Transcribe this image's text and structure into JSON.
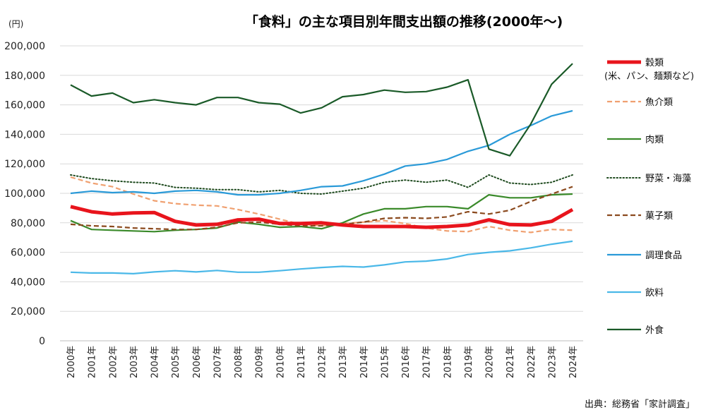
{
  "chart_data": {
    "type": "line",
    "title": "「食料」の主な項目別年間支出額の推移(2000年～)",
    "ylabel": "(円)",
    "xlabel": "",
    "ylim": [
      0,
      200000
    ],
    "yticks": [
      0,
      20000,
      40000,
      60000,
      80000,
      100000,
      120000,
      140000,
      160000,
      180000,
      200000
    ],
    "ytick_labels": [
      "0",
      "20,000",
      "40,000",
      "60,000",
      "80,000",
      "100,000",
      "120,000",
      "140,000",
      "160,000",
      "180,000",
      "200,000"
    ],
    "grid": true,
    "legend_placement": "right",
    "source": "出典：総務省「家計調査」",
    "categories": [
      "2000年",
      "2001年",
      "2002年",
      "2003年",
      "2004年",
      "2005年",
      "2006年",
      "2007年",
      "2008年",
      "2009年",
      "2010年",
      "2011年",
      "2012年",
      "2013年",
      "2014年",
      "2015年",
      "2016年",
      "2017年",
      "2018年",
      "2019年",
      "2020年",
      "2021年",
      "2022年",
      "2023年",
      "2024年"
    ],
    "series": [
      {
        "name": "穀類",
        "sub": "(米、パン、麺類など)",
        "color": "#e8141c",
        "style": "solid-thick",
        "values": [
          91000,
          87500,
          86000,
          86700,
          87000,
          81000,
          78500,
          79000,
          82000,
          82500,
          79500,
          79500,
          80000,
          78500,
          77500,
          77500,
          77500,
          77000,
          77500,
          78500,
          82000,
          78800,
          78500,
          81000,
          89000
        ]
      },
      {
        "name": "魚介類",
        "color": "#f0a070",
        "style": "dashed",
        "values": [
          111000,
          107000,
          104500,
          99500,
          95000,
          93000,
          92000,
          91500,
          89000,
          86000,
          82500,
          79000,
          78000,
          79500,
          80500,
          81500,
          79500,
          76500,
          74500,
          74000,
          77500,
          75000,
          73500,
          75500,
          75000
        ]
      },
      {
        "name": "肉類",
        "color": "#3a8a2a",
        "style": "solid",
        "values": [
          81500,
          75500,
          75000,
          74500,
          74000,
          75000,
          75500,
          76500,
          80500,
          79000,
          77000,
          77500,
          76000,
          80000,
          86000,
          89500,
          89500,
          91000,
          91000,
          89500,
          99000,
          97000,
          97000,
          99000,
          99500
        ]
      },
      {
        "name": "野菜・海藻",
        "color": "#1e4a1e",
        "style": "dotted",
        "values": [
          112500,
          110000,
          108500,
          107500,
          107000,
          104000,
          103500,
          102500,
          102500,
          101000,
          102000,
          100000,
          99500,
          101500,
          103500,
          107500,
          109000,
          107500,
          109000,
          104000,
          112500,
          107000,
          106000,
          107500,
          112500
        ]
      },
      {
        "name": "菓子類",
        "color": "#8b4a1e",
        "style": "dashed",
        "values": [
          79000,
          78000,
          77500,
          76500,
          76000,
          75500,
          75500,
          77000,
          80000,
          80500,
          79000,
          78000,
          78000,
          79000,
          80500,
          83000,
          83500,
          83000,
          84000,
          87500,
          86000,
          88500,
          94500,
          99500,
          104500
        ]
      },
      {
        "name": "調理食品",
        "color": "#2a9ad8",
        "style": "solid",
        "values": [
          100000,
          101500,
          100500,
          101000,
          100000,
          101500,
          102000,
          101000,
          99000,
          99000,
          100000,
          102000,
          104500,
          105000,
          108500,
          113000,
          118500,
          120000,
          123000,
          128500,
          132500,
          140000,
          146000,
          152500,
          156000
        ]
      },
      {
        "name": "飲料",
        "color": "#4ab8e8",
        "style": "solid",
        "values": [
          46500,
          46000,
          46000,
          45500,
          46700,
          47500,
          46700,
          47700,
          46500,
          46500,
          47500,
          48700,
          49700,
          50500,
          50000,
          51500,
          53500,
          54000,
          55500,
          58500,
          60000,
          61000,
          63000,
          65500,
          67500
        ]
      },
      {
        "name": "外食",
        "color": "#1a5a28",
        "style": "solid",
        "values": [
          173500,
          166000,
          168000,
          161500,
          163500,
          161500,
          160000,
          165000,
          165000,
          161500,
          160500,
          154500,
          158000,
          165500,
          167000,
          170000,
          168500,
          169000,
          172000,
          177000,
          130000,
          125500,
          147000,
          174000,
          188000
        ]
      }
    ]
  }
}
